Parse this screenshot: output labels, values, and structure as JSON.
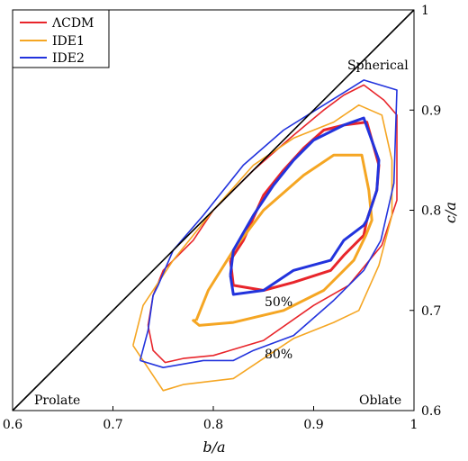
{
  "chart_data": {
    "type": "line",
    "xlabel": "b/a",
    "ylabel": "c/a",
    "xlim": [
      0.6,
      1.0
    ],
    "ylim": [
      0.6,
      1.0
    ],
    "xticks": [
      "0.6",
      "0.7",
      "0.8",
      "0.9",
      "1"
    ],
    "yticks": [
      "0.6",
      "0.7",
      "0.8",
      "0.9",
      "1"
    ],
    "grid": false,
    "legend_position": "top-left",
    "colors": {
      "lcdm": "#e8252b",
      "ide1": "#f5a623",
      "ide2": "#2233dd"
    },
    "legend": [
      {
        "label": "ΛCDM",
        "color": "#e8252b"
      },
      {
        "label": "IDE1",
        "color": "#f5a623"
      },
      {
        "label": "IDE2",
        "color": "#2233dd"
      }
    ],
    "annotations": {
      "spherical": "Spherical",
      "prolate": "Prolate",
      "oblate": "Oblate",
      "level_50": "50%",
      "level_80": "80%"
    },
    "reference_line": {
      "x": [
        0.6,
        1.0
      ],
      "y": [
        0.6,
        1.0
      ]
    },
    "series": [
      {
        "name": "ΛCDM",
        "level": "50%",
        "color": "#e8252b",
        "x": [
          0.817,
          0.83,
          0.85,
          0.87,
          0.89,
          0.91,
          0.93,
          0.953,
          0.965,
          0.963,
          0.953,
          0.95,
          0.93,
          0.917,
          0.88,
          0.85,
          0.82,
          0.817
        ],
        "y": [
          0.75,
          0.77,
          0.815,
          0.84,
          0.862,
          0.88,
          0.885,
          0.888,
          0.845,
          0.82,
          0.79,
          0.775,
          0.755,
          0.74,
          0.728,
          0.72,
          0.725,
          0.75
        ]
      },
      {
        "name": "ΛCDM",
        "level": "80%",
        "color": "#e8252b",
        "x": [
          0.735,
          0.74,
          0.75,
          0.78,
          0.8,
          0.84,
          0.88,
          0.91,
          0.93,
          0.95,
          0.97,
          0.983,
          0.983,
          0.968,
          0.935,
          0.9,
          0.85,
          0.8,
          0.77,
          0.752,
          0.74,
          0.735
        ],
        "y": [
          0.685,
          0.715,
          0.74,
          0.77,
          0.8,
          0.84,
          0.875,
          0.9,
          0.915,
          0.925,
          0.91,
          0.895,
          0.81,
          0.765,
          0.725,
          0.705,
          0.67,
          0.655,
          0.652,
          0.648,
          0.66,
          0.685
        ]
      },
      {
        "name": "IDE1",
        "level": "50%",
        "color": "#f5a623",
        "x": [
          0.783,
          0.795,
          0.82,
          0.85,
          0.89,
          0.92,
          0.948,
          0.955,
          0.958,
          0.952,
          0.94,
          0.91,
          0.87,
          0.82,
          0.786,
          0.78,
          0.783
        ],
        "y": [
          0.69,
          0.72,
          0.76,
          0.8,
          0.835,
          0.855,
          0.855,
          0.82,
          0.79,
          0.775,
          0.75,
          0.72,
          0.7,
          0.688,
          0.685,
          0.69,
          0.69
        ]
      },
      {
        "name": "IDE1",
        "level": "80%",
        "color": "#f5a623",
        "x": [
          0.72,
          0.73,
          0.76,
          0.8,
          0.84,
          0.88,
          0.92,
          0.945,
          0.968,
          0.978,
          0.978,
          0.965,
          0.945,
          0.92,
          0.88,
          0.82,
          0.77,
          0.75,
          0.72
        ],
        "y": [
          0.665,
          0.705,
          0.75,
          0.8,
          0.845,
          0.872,
          0.888,
          0.905,
          0.895,
          0.85,
          0.795,
          0.745,
          0.7,
          0.688,
          0.672,
          0.632,
          0.626,
          0.62,
          0.665
        ]
      },
      {
        "name": "IDE2",
        "level": "50%",
        "color": "#2233dd",
        "x": [
          0.817,
          0.82,
          0.84,
          0.86,
          0.88,
          0.9,
          0.93,
          0.95,
          0.965,
          0.963,
          0.953,
          0.95,
          0.93,
          0.917,
          0.88,
          0.85,
          0.82,
          0.817
        ],
        "y": [
          0.735,
          0.76,
          0.795,
          0.825,
          0.85,
          0.87,
          0.885,
          0.892,
          0.85,
          0.82,
          0.79,
          0.785,
          0.77,
          0.75,
          0.74,
          0.72,
          0.716,
          0.735
        ]
      },
      {
        "name": "IDE2",
        "level": "80%",
        "color": "#2233dd",
        "x": [
          0.727,
          0.735,
          0.74,
          0.745,
          0.76,
          0.79,
          0.83,
          0.87,
          0.91,
          0.95,
          0.983,
          0.98,
          0.967,
          0.95,
          0.92,
          0.88,
          0.84,
          0.82,
          0.79,
          0.75,
          0.727
        ],
        "y": [
          0.65,
          0.68,
          0.715,
          0.725,
          0.76,
          0.795,
          0.845,
          0.88,
          0.905,
          0.93,
          0.92,
          0.827,
          0.77,
          0.74,
          0.71,
          0.675,
          0.66,
          0.65,
          0.65,
          0.643,
          0.65
        ]
      }
    ]
  }
}
